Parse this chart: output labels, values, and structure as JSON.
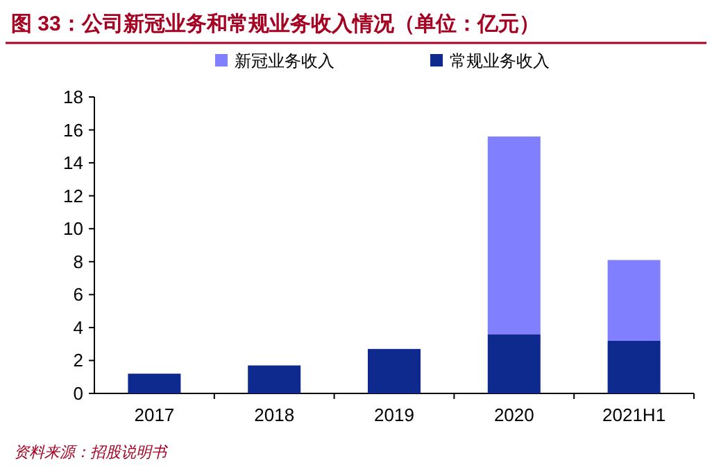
{
  "chart_data": {
    "type": "bar",
    "title": "图 33：公司新冠业务和常规业务收入情况（单位：亿元）",
    "categories": [
      "2017",
      "2018",
      "2019",
      "2020",
      "2021H1"
    ],
    "stacked": true,
    "series": [
      {
        "name": "常规业务收入",
        "color": "#0f2a8f",
        "values": [
          1.2,
          1.7,
          2.7,
          3.6,
          3.2
        ]
      },
      {
        "name": "新冠业务收入",
        "color": "#8080ff",
        "values": [
          0,
          0,
          0,
          12.0,
          4.9
        ]
      }
    ],
    "ylim": [
      0,
      18
    ],
    "yticks": [
      0,
      2,
      4,
      6,
      8,
      10,
      12,
      14,
      16,
      18
    ],
    "grid": false,
    "legend": "top",
    "annotations": [
      "资料来源：招股说明书"
    ]
  }
}
